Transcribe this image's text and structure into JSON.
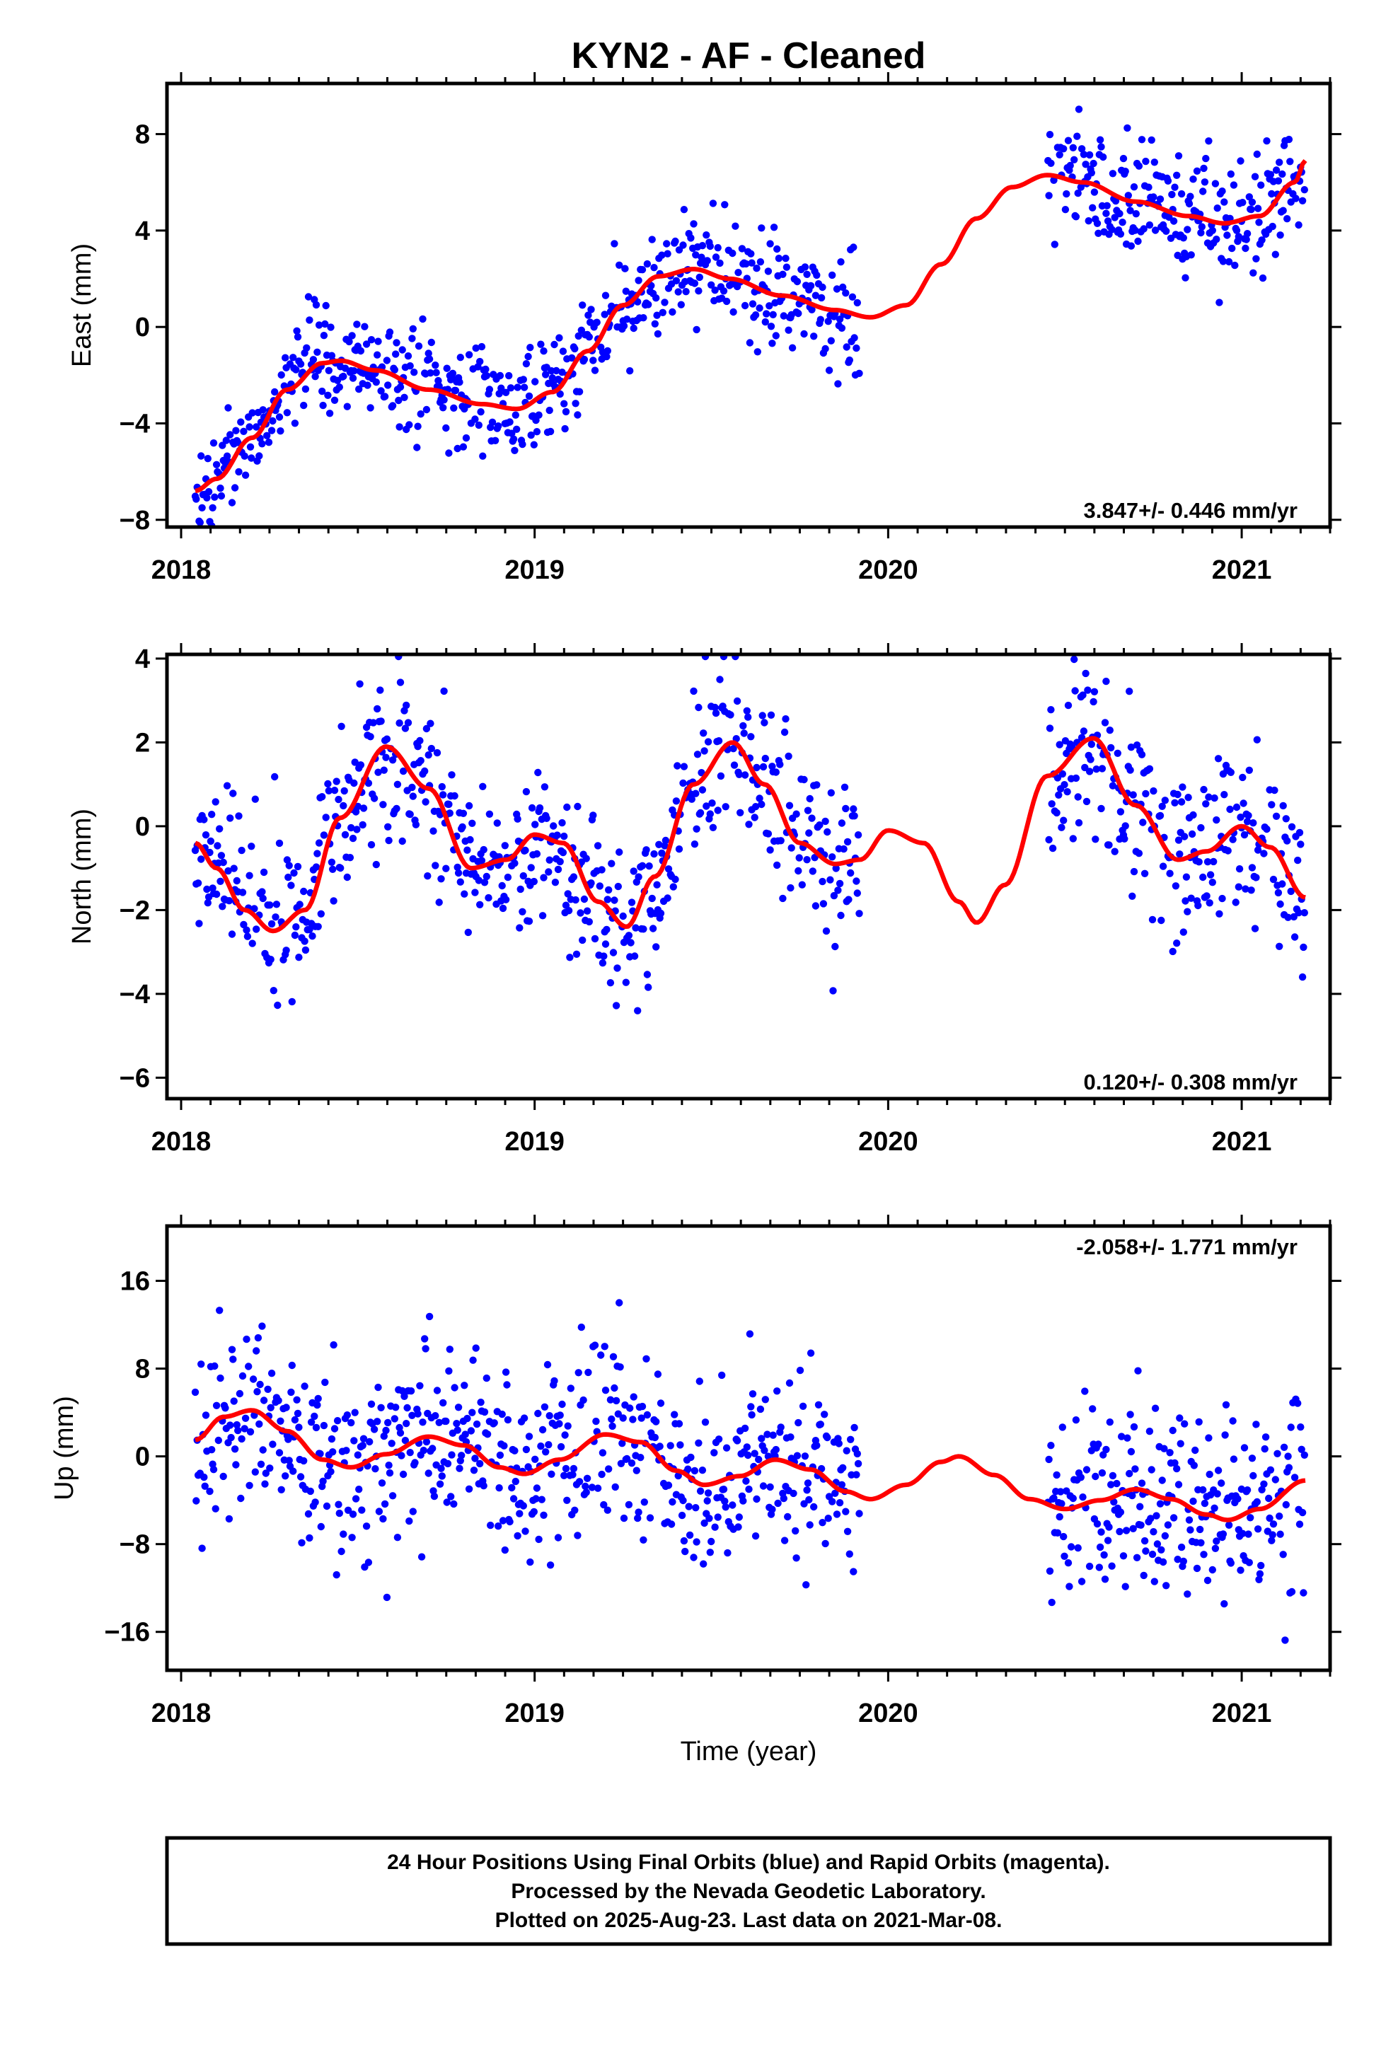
{
  "title": "KYN2  - AF - Cleaned",
  "xlabel": "Time (year)",
  "footer": [
    "24 Hour Positions Using Final Orbits (blue) and Rapid Orbits (magenta).",
    "Processed by the Nevada Geodetic Laboratory.",
    "Plotted on 2025-Aug-23. Last data on 2021-Mar-08."
  ],
  "colors": {
    "points": "#0000ff",
    "model": "#ff0000",
    "frame": "#000000"
  },
  "chart_data": [
    {
      "type": "scatter",
      "ylabel": "East (mm)",
      "xlim": [
        2017.96,
        2021.25
      ],
      "ylim": [
        -8.3,
        10.1
      ],
      "x_ticks": [
        "2018",
        "2019",
        "2020",
        "2021"
      ],
      "y_ticks": [
        "−8",
        "−4",
        "0",
        "4",
        "8"
      ],
      "y_tick_values": [
        -8,
        -4,
        0,
        4,
        8
      ],
      "rate_text": "3.847+/- 0.446 mm/yr",
      "gaps": [
        [
          2019.92,
          2020.45
        ]
      ],
      "noise_mm": 1.2,
      "model": {
        "x": [
          2018.04,
          2018.1,
          2018.2,
          2018.3,
          2018.4,
          2018.45,
          2018.55,
          2018.7,
          2018.85,
          2018.95,
          2019.05,
          2019.15,
          2019.25,
          2019.35,
          2019.45,
          2019.55,
          2019.7,
          2019.85,
          2019.95,
          2020.05,
          2020.15,
          2020.25,
          2020.35,
          2020.45,
          2020.55,
          2020.7,
          2020.85,
          2020.95,
          2021.05,
          2021.15,
          2021.18
        ],
        "y": [
          -6.8,
          -6.3,
          -4.6,
          -2.6,
          -1.5,
          -1.4,
          -1.8,
          -2.6,
          -3.2,
          -3.4,
          -2.7,
          -1.0,
          0.9,
          2.1,
          2.4,
          2.0,
          1.3,
          0.7,
          0.4,
          0.9,
          2.6,
          4.5,
          5.8,
          6.3,
          6.0,
          5.2,
          4.6,
          4.3,
          4.6,
          6.0,
          6.9
        ]
      }
    },
    {
      "type": "scatter",
      "ylabel": "North (mm)",
      "xlim": [
        2017.96,
        2021.25
      ],
      "ylim": [
        -6.5,
        4.1
      ],
      "x_ticks": [
        "2018",
        "2019",
        "2020",
        "2021"
      ],
      "y_ticks": [
        "−6",
        "−4",
        "−2",
        "0",
        "2",
        "4"
      ],
      "y_tick_values": [
        -6,
        -4,
        -2,
        0,
        2,
        4
      ],
      "rate_text": "0.120+/- 0.308 mm/yr",
      "gaps": [
        [
          2019.92,
          2020.45
        ]
      ],
      "noise_mm": 1.0,
      "model": {
        "x": [
          2018.04,
          2018.1,
          2018.18,
          2018.26,
          2018.35,
          2018.45,
          2018.58,
          2018.7,
          2018.82,
          2018.92,
          2019.0,
          2019.08,
          2019.18,
          2019.26,
          2019.34,
          2019.45,
          2019.56,
          2019.65,
          2019.75,
          2019.85,
          2019.92,
          2020.0,
          2020.1,
          2020.2,
          2020.25,
          2020.33,
          2020.45,
          2020.58,
          2020.7,
          2020.82,
          2020.9,
          2021.0,
          2021.08,
          2021.18
        ],
        "y": [
          -0.4,
          -1.0,
          -2.0,
          -2.5,
          -2.0,
          0.2,
          1.9,
          0.9,
          -1.0,
          -0.8,
          -0.2,
          -0.4,
          -1.8,
          -2.4,
          -1.2,
          1.0,
          2.0,
          1.0,
          -0.4,
          -0.9,
          -0.8,
          -0.1,
          -0.4,
          -1.8,
          -2.3,
          -1.4,
          1.2,
          2.1,
          0.5,
          -0.8,
          -0.6,
          0.0,
          -0.5,
          -1.7
        ]
      }
    },
    {
      "type": "scatter",
      "ylabel": "Up (mm)",
      "xlim": [
        2017.96,
        2021.25
      ],
      "ylim": [
        -19.5,
        21.0
      ],
      "x_ticks": [
        "2018",
        "2019",
        "2020",
        "2021"
      ],
      "y_ticks": [
        "−16",
        "−8",
        "0",
        "8",
        "16"
      ],
      "y_tick_values": [
        -16,
        -8,
        0,
        8,
        16
      ],
      "rate_text": "-2.058+/- 1.771 mm/yr",
      "gaps": [
        [
          2019.92,
          2020.45
        ]
      ],
      "noise_mm": 4.3,
      "model": {
        "x": [
          2018.04,
          2018.12,
          2018.2,
          2018.3,
          2018.4,
          2018.48,
          2018.58,
          2018.7,
          2018.8,
          2018.9,
          2018.97,
          2019.07,
          2019.2,
          2019.3,
          2019.4,
          2019.48,
          2019.58,
          2019.68,
          2019.78,
          2019.88,
          2019.95,
          2020.05,
          2020.15,
          2020.2,
          2020.3,
          2020.4,
          2020.5,
          2020.6,
          2020.7,
          2020.8,
          2020.9,
          2020.96,
          2021.05,
          2021.18
        ],
        "y": [
          1.5,
          3.6,
          4.2,
          2.3,
          -0.3,
          -1.0,
          0.2,
          1.8,
          1.0,
          -1.0,
          -1.6,
          -0.3,
          2.0,
          1.3,
          -1.3,
          -2.6,
          -1.8,
          -0.3,
          -1.2,
          -3.2,
          -3.9,
          -2.6,
          -0.5,
          0.0,
          -1.7,
          -3.9,
          -4.8,
          -4.0,
          -3.0,
          -3.9,
          -5.3,
          -5.8,
          -4.8,
          -2.2
        ]
      }
    }
  ]
}
